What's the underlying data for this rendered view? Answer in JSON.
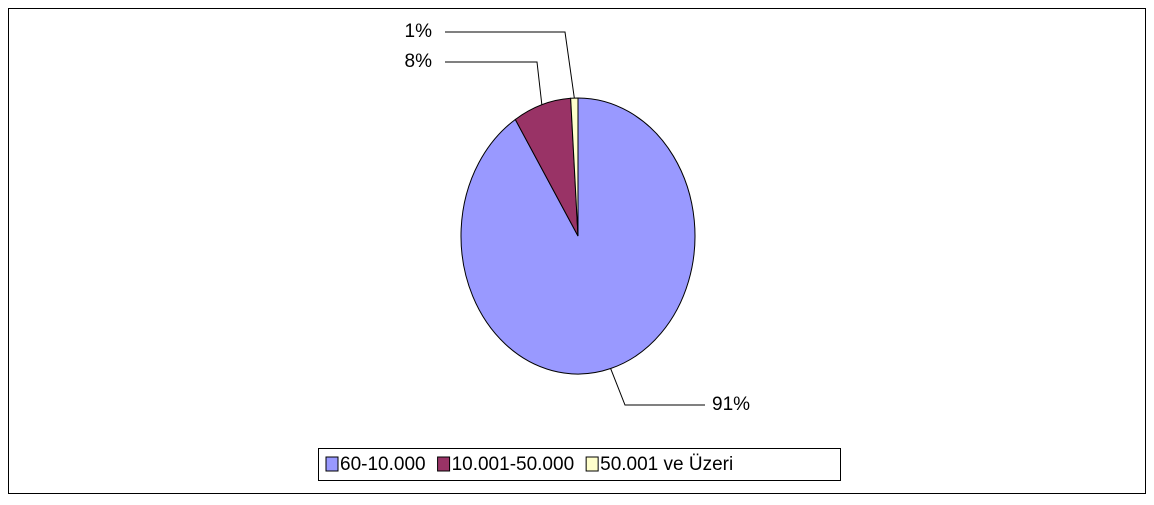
{
  "chart_data": {
    "type": "pie",
    "categories": [
      "60-10.000",
      "10.001-50.000",
      "50.001 ve Üzeri"
    ],
    "values": [
      91,
      8,
      1
    ],
    "value_labels": [
      "91%",
      "8%",
      "1%"
    ],
    "colors": [
      "#9999ff",
      "#993366",
      "#ffffcc"
    ],
    "legend": "bottom"
  }
}
